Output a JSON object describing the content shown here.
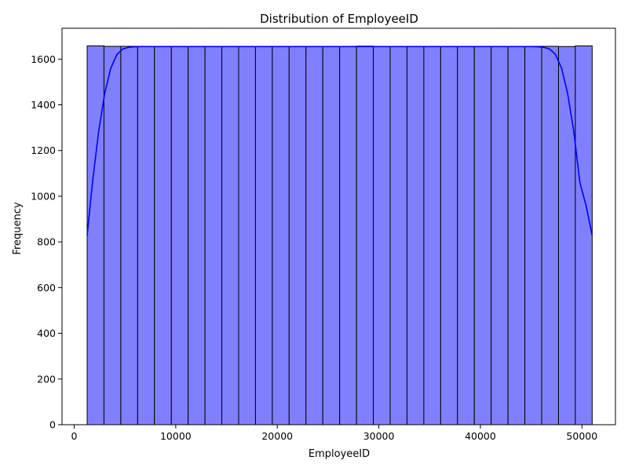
{
  "chart_data": {
    "type": "bar",
    "title": "Distribution of EmployeeID",
    "xlabel": "EmployeeID",
    "ylabel": "Frequency",
    "xlim": [
      -1200,
      53300
    ],
    "ylim": [
      0,
      1735
    ],
    "x_ticks": [
      0,
      10000,
      20000,
      30000,
      40000,
      50000
    ],
    "y_ticks": [
      0,
      200,
      400,
      600,
      800,
      1000,
      1200,
      1400,
      1600
    ],
    "bin_range": [
      1274,
      51009
    ],
    "bins": 30,
    "values": [
      1658,
      1656,
      1656,
      1656,
      1656,
      1656,
      1656,
      1656,
      1656,
      1656,
      1656,
      1656,
      1656,
      1656,
      1656,
      1656,
      1657,
      1656,
      1656,
      1656,
      1656,
      1656,
      1656,
      1656,
      1656,
      1656,
      1656,
      1656,
      1655,
      1658
    ],
    "kde": {
      "x": [
        1274,
        1800,
        2400,
        3000,
        3600,
        4200,
        4800,
        5400,
        6000,
        6600,
        7200,
        8000,
        10000,
        20000,
        30000,
        40000,
        44000,
        45000,
        45600,
        46200,
        46800,
        47400,
        48000,
        48600,
        49200,
        49800,
        50400,
        51009
      ],
      "y": [
        828,
        1060,
        1282,
        1448,
        1560,
        1620,
        1645,
        1652,
        1654,
        1655,
        1655,
        1655,
        1655,
        1655,
        1655,
        1655,
        1655,
        1655,
        1654,
        1652,
        1645,
        1620,
        1560,
        1448,
        1282,
        1060,
        960,
        828
      ]
    },
    "grid": false,
    "colors": {
      "bar_fill": "#8080ff",
      "bar_edge": "#000000",
      "kde_line": "#0000ff",
      "axes": "#000000"
    }
  }
}
